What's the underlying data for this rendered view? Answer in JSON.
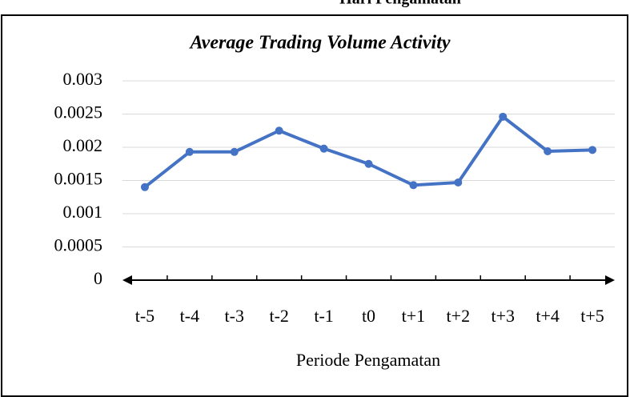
{
  "heading": "Hari Pengamatan",
  "chart_data": {
    "type": "line",
    "title": "Average Trading Volume Activity",
    "x_label": "Periode Pengamatan",
    "categories": [
      "t-5",
      "t-4",
      "t-3",
      "t-2",
      "t-1",
      "t0",
      "t+1",
      "t+2",
      "t+3",
      "t+4",
      "t+5"
    ],
    "values": [
      0.0014,
      0.00193,
      0.00193,
      0.00225,
      0.00198,
      0.00175,
      0.00143,
      0.00147,
      0.00246,
      0.00194,
      0.00196
    ],
    "color": "#4472c4",
    "ylim": [
      0,
      0.003
    ],
    "yticks": [
      0,
      0.0005,
      0.001,
      0.0015,
      0.002,
      0.0025,
      0.003
    ],
    "grid": true
  }
}
